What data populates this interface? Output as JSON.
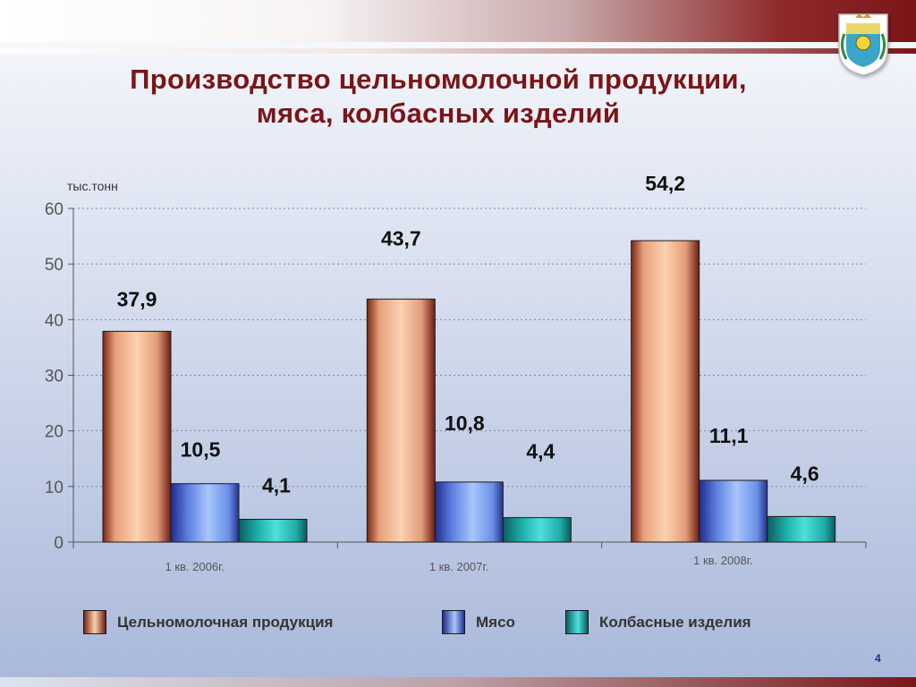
{
  "slide": {
    "title_line1": "Производство цельномолочной продукции,",
    "title_line2": "мяса, колбасных изделий",
    "page_number": "4"
  },
  "colors": {
    "accent": "#7a1518",
    "milk": "#f4b894",
    "meat": "#7e9ee6",
    "sausage": "#2cc4c0"
  },
  "chart_data": {
    "type": "bar",
    "unit_label": "тыс.тонн",
    "categories": [
      "1 кв. 2006г.",
      "1 кв. 2007г.",
      "1 кв. 2008г."
    ],
    "series": [
      {
        "name": "Цельномолочная продукция",
        "values": [
          37.9,
          43.7,
          54.2
        ],
        "labels": [
          "37,9",
          "43,7",
          "54,2"
        ]
      },
      {
        "name": "Мясо",
        "values": [
          10.5,
          10.8,
          11.1
        ],
        "labels": [
          "10,5",
          "10,8",
          "11,1"
        ]
      },
      {
        "name": "Колбасные изделия",
        "values": [
          4.1,
          4.4,
          4.6
        ],
        "labels": [
          "4,1",
          "4,4",
          "4,6"
        ]
      }
    ],
    "ylim": [
      0,
      60
    ],
    "yticks": [
      0,
      10,
      20,
      30,
      40,
      50,
      60
    ],
    "grid": true,
    "legend_position": "bottom"
  }
}
